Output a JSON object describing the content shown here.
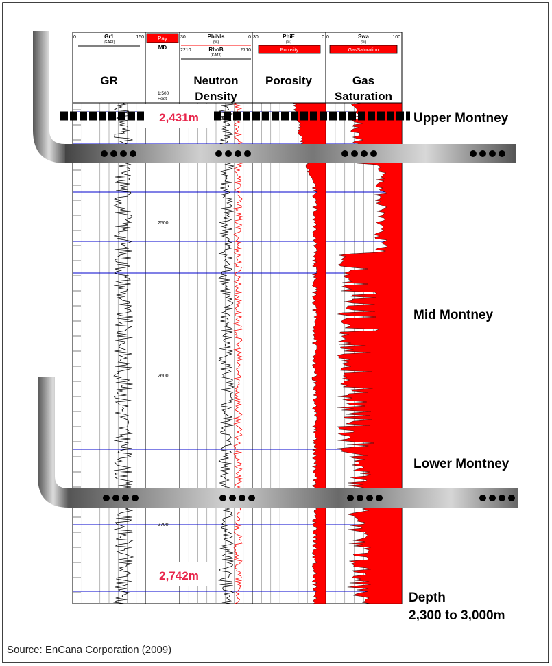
{
  "tracks": {
    "gr": {
      "scale_min": "0",
      "scale_label": "Gr1",
      "scale_max": "150",
      "unit": "(GAPI)",
      "title": "GR"
    },
    "md": {
      "pay_label": "Pay",
      "md_label": "MD",
      "scale": "1:500",
      "unit": "Feet",
      "depths": [
        "2500",
        "2600",
        "2700"
      ]
    },
    "neutron_density": {
      "phi_min": "30",
      "phi_label": "PhiNls",
      "phi_max": "0",
      "phi_unit": "(%)",
      "rho_min": "2210",
      "rho_label": "RhoB",
      "rho_max": "2710",
      "rho_unit": "(K/M3)",
      "title_line1": "Neutron",
      "title_line2": "Density"
    },
    "porosity": {
      "scale_min": "30",
      "scale_label": "PhiE",
      "scale_max": "0",
      "unit": "(%)",
      "legend": "Porosity",
      "title": "Porosity"
    },
    "gas_saturation": {
      "scale_min": "0",
      "scale_label": "Swa",
      "scale_max": "100",
      "unit": "(%)",
      "legend": "GasSaturation",
      "title_line1": "Gas",
      "title_line2": "Saturation"
    }
  },
  "zones": {
    "upper": "Upper Montney",
    "mid": "Mid Montney",
    "lower": "Lower Montney"
  },
  "depth_markers": {
    "top": "2,431m",
    "bottom": "2,742m"
  },
  "depth_range": {
    "line1": "Depth",
    "line2": "2,300 to 3,000m"
  },
  "source": "Source: EnCana Corporation (2009)",
  "colors": {
    "fill": "#ff0000",
    "curve_red": "#ff0000",
    "grid_blue": "#0000cc",
    "marker_text": "#e8244a"
  },
  "icons": {
    "wellbore": "horizontal-wellbore-icon",
    "perforation": "perforation-dots-icon"
  }
}
